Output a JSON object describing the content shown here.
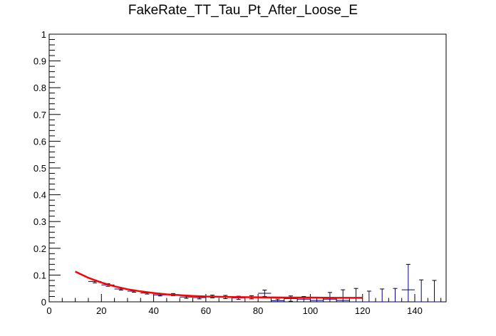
{
  "chart_data": {
    "type": "scatter",
    "title": "FakeRate_TT_Tau_Pt_After_Loose_E",
    "xlabel": "",
    "ylabel": "",
    "xlim": [
      0,
      152
    ],
    "ylim": [
      0,
      1
    ],
    "x_ticks": [
      0,
      20,
      40,
      60,
      80,
      100,
      120,
      140
    ],
    "y_ticks": [
      0,
      0.1,
      0.2,
      0.3,
      0.4,
      0.5,
      0.6,
      0.7,
      0.8,
      0.9,
      1
    ],
    "grid": false,
    "legend": "none",
    "series": [
      {
        "kind": "points_with_errors",
        "color": "#000080",
        "points": [
          {
            "x": 17.5,
            "y": 0.076,
            "xerr": 2.5,
            "yerr": 0.005
          },
          {
            "x": 22.5,
            "y": 0.063,
            "xerr": 2.5,
            "yerr": 0.005
          },
          {
            "x": 27.5,
            "y": 0.048,
            "xerr": 2.5,
            "yerr": 0.004
          },
          {
            "x": 32.5,
            "y": 0.04,
            "xerr": 2.5,
            "yerr": 0.004
          },
          {
            "x": 37.5,
            "y": 0.033,
            "xerr": 2.5,
            "yerr": 0.004
          },
          {
            "x": 42.5,
            "y": 0.026,
            "xerr": 2.5,
            "yerr": 0.004
          },
          {
            "x": 47.5,
            "y": 0.027,
            "xerr": 2.5,
            "yerr": 0.004
          },
          {
            "x": 52.5,
            "y": 0.018,
            "xerr": 2.5,
            "yerr": 0.005
          },
          {
            "x": 57.5,
            "y": 0.016,
            "xerr": 2.5,
            "yerr": 0.005
          },
          {
            "x": 62.5,
            "y": 0.02,
            "xerr": 2.5,
            "yerr": 0.005
          },
          {
            "x": 67.5,
            "y": 0.018,
            "xerr": 2.5,
            "yerr": 0.006
          },
          {
            "x": 72.5,
            "y": 0.015,
            "xerr": 2.5,
            "yerr": 0.006
          },
          {
            "x": 77.5,
            "y": 0.017,
            "xerr": 2.5,
            "yerr": 0.006
          },
          {
            "x": 82.5,
            "y": 0.032,
            "xerr": 2.5,
            "yerr": 0.012
          },
          {
            "x": 87.5,
            "y": 0.004,
            "xerr": 2.5,
            "yerr": 0.006
          },
          {
            "x": 92.5,
            "y": 0.012,
            "xerr": 2.5,
            "yerr": 0.01
          },
          {
            "x": 97.5,
            "y": 0.01,
            "xerr": 2.5,
            "yerr": 0.01
          },
          {
            "x": 102.5,
            "y": 0.005,
            "xerr": 2.5,
            "yerr": 0.012
          },
          {
            "x": 107.5,
            "y": 0.01,
            "xerr": 2.5,
            "yerr": 0.025
          },
          {
            "x": 112.5,
            "y": 0.005,
            "xerr": 2.5,
            "yerr": 0.04
          },
          {
            "x": 117.5,
            "y": 0.0,
            "xerr": 2.5,
            "yerr": 0.05
          },
          {
            "x": 122.5,
            "y": 0.0,
            "xerr": 2.5,
            "yerr": 0.04
          },
          {
            "x": 127.5,
            "y": 0.0,
            "xerr": 2.5,
            "yerr": 0.048
          },
          {
            "x": 132.5,
            "y": 0.0,
            "xerr": 2.5,
            "yerr": 0.05
          },
          {
            "x": 137.5,
            "y": 0.045,
            "xerr": 2.5,
            "yerr": 0.095
          },
          {
            "x": 142.5,
            "y": 0.0,
            "xerr": 2.5,
            "yerr": 0.082
          },
          {
            "x": 147.5,
            "y": 0.0,
            "xerr": 2.5,
            "yerr": 0.08
          }
        ]
      },
      {
        "kind": "fit_line",
        "color": "#ff0000",
        "x": [
          10,
          15,
          20,
          25,
          30,
          35,
          40,
          45,
          50,
          55,
          60,
          70,
          80,
          90,
          100,
          110,
          120
        ],
        "y": [
          0.113,
          0.09,
          0.072,
          0.058,
          0.047,
          0.039,
          0.033,
          0.028,
          0.025,
          0.022,
          0.02,
          0.018,
          0.017,
          0.016,
          0.016,
          0.015,
          0.015
        ]
      }
    ]
  }
}
